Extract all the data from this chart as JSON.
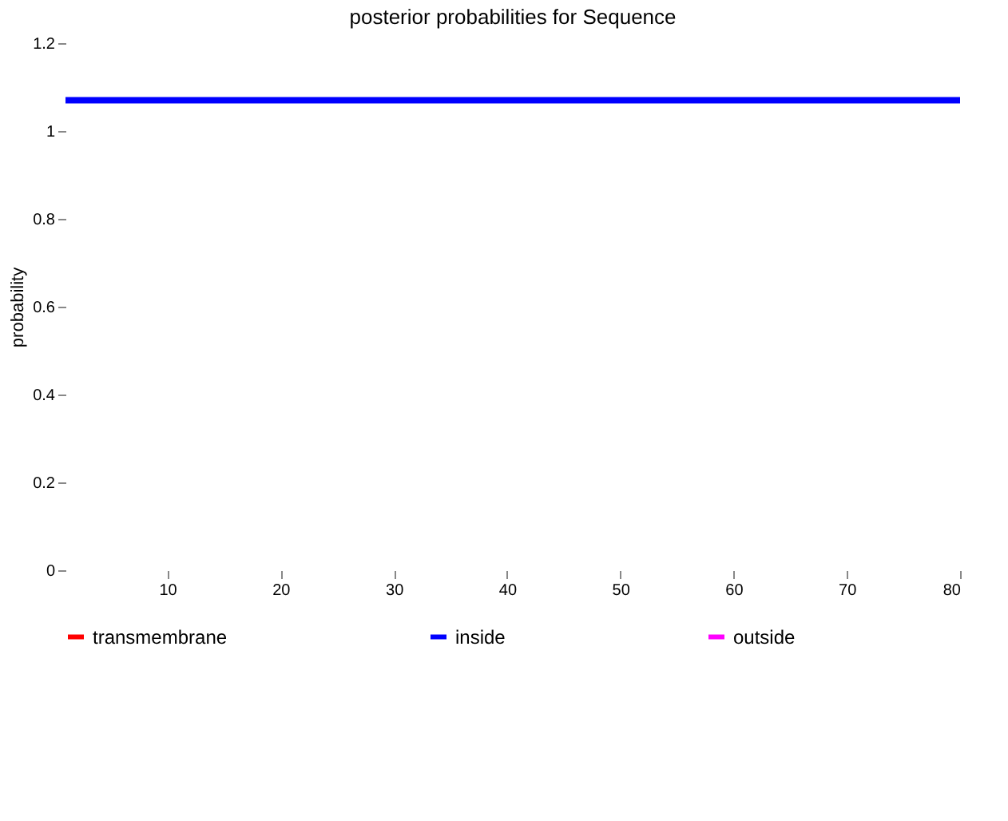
{
  "chart_data": {
    "type": "line",
    "title": "posterior probabilities for Sequence",
    "ylabel": "probability",
    "xlim": [
      1,
      80
    ],
    "xticks": [
      10,
      20,
      30,
      40,
      50,
      60,
      70,
      80
    ],
    "ylim": [
      0,
      1.2
    ],
    "yticks": [
      0,
      0.2,
      0.4,
      0.6,
      0.8,
      1,
      1.2
    ],
    "grid": false,
    "legend": "bottom",
    "marker": "none",
    "line_style": "solid",
    "series": [
      {
        "name": "transmembrane",
        "color": "#ff0000"
      },
      {
        "name": "inside",
        "color": "#0000ff",
        "x": [
          1,
          80
        ],
        "values": [
          1.07,
          1.07
        ]
      },
      {
        "name": "outside",
        "color": "#ff00ff"
      }
    ]
  }
}
